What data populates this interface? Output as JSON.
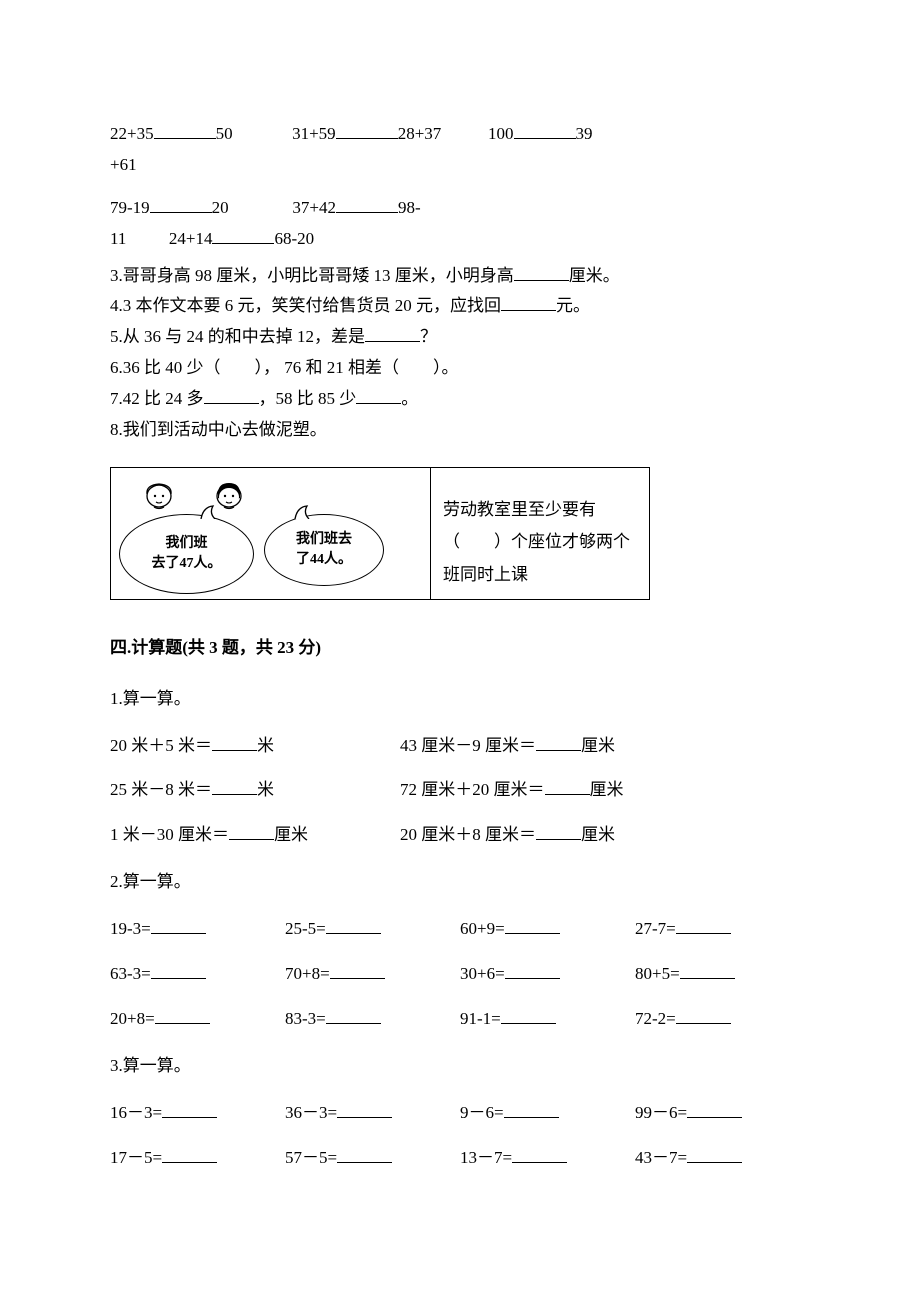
{
  "fill": {
    "r1_a": "22+35",
    "r1_b": "50",
    "r1_c": "31+59",
    "r1_d": "28+37",
    "r1_e": "100",
    "r1_f": "39",
    "r1_g": "+61",
    "r2_a": "79-19",
    "r2_b": "20",
    "r2_c": "37+42",
    "r2_d": "98-",
    "r2_e": "11",
    "r2_f": "24+14",
    "r2_g": "68-20",
    "q3": "3.哥哥身高 98 厘米，小明比哥哥矮 13 厘米，小明身高",
    "q3_tail": "厘米。",
    "q4": "4.3 本作文本要 6 元，笑笑付给售货员 20 元，应找回",
    "q4_tail": "元。",
    "q5": "5.从 36 与 24 的和中去掉 12，差是",
    "q5_tail": "？",
    "q6": "6.36 比 40 少（　　），  76 和 21 相差（　　）。",
    "q7_a": "7.42 比 24 多",
    "q7_b": "，58 比 85 少",
    "q7_c": "。",
    "q8": "8.我们到活动中心去做泥塑。",
    "bubble_a": "我们班\n去了47人。",
    "bubble_b": "我们班去\n了44人。",
    "img_right": "劳动教室里至少要有（　　）个座位才够两个班同时上课"
  },
  "section4": {
    "heading": "四.计算题(共 3 题，共 23 分)",
    "g1": {
      "title": "1.算一算。",
      "rows": [
        {
          "a": "20 米＋5 米＝",
          "au": "米",
          "b": "43 厘米－9 厘米＝",
          "bu": "厘米"
        },
        {
          "a": "25 米－8 米＝",
          "au": "米",
          "b": "72 厘米＋20 厘米＝",
          "bu": "厘米"
        },
        {
          "a": "1 米－30 厘米＝",
          "au": "厘米",
          "b": "20 厘米＋8 厘米＝",
          "bu": "厘米"
        }
      ]
    },
    "g2": {
      "title": "2.算一算。",
      "rows": [
        [
          "19-3=",
          "25-5=",
          "60+9=",
          "27-7="
        ],
        [
          "63-3=",
          "70+8=",
          "30+6=",
          "80+5="
        ],
        [
          "20+8=",
          "83-3=",
          "91-1=",
          "72-2="
        ]
      ]
    },
    "g3": {
      "title": "3.算一算。",
      "rows": [
        [
          "16－3=",
          "36－3=",
          "9－6=",
          "99－6="
        ],
        [
          "17－5=",
          "57－5=",
          "13－7=",
          "43－7="
        ]
      ]
    }
  },
  "colors": {
    "text": "#000000",
    "background": "#ffffff",
    "border": "#000000"
  }
}
